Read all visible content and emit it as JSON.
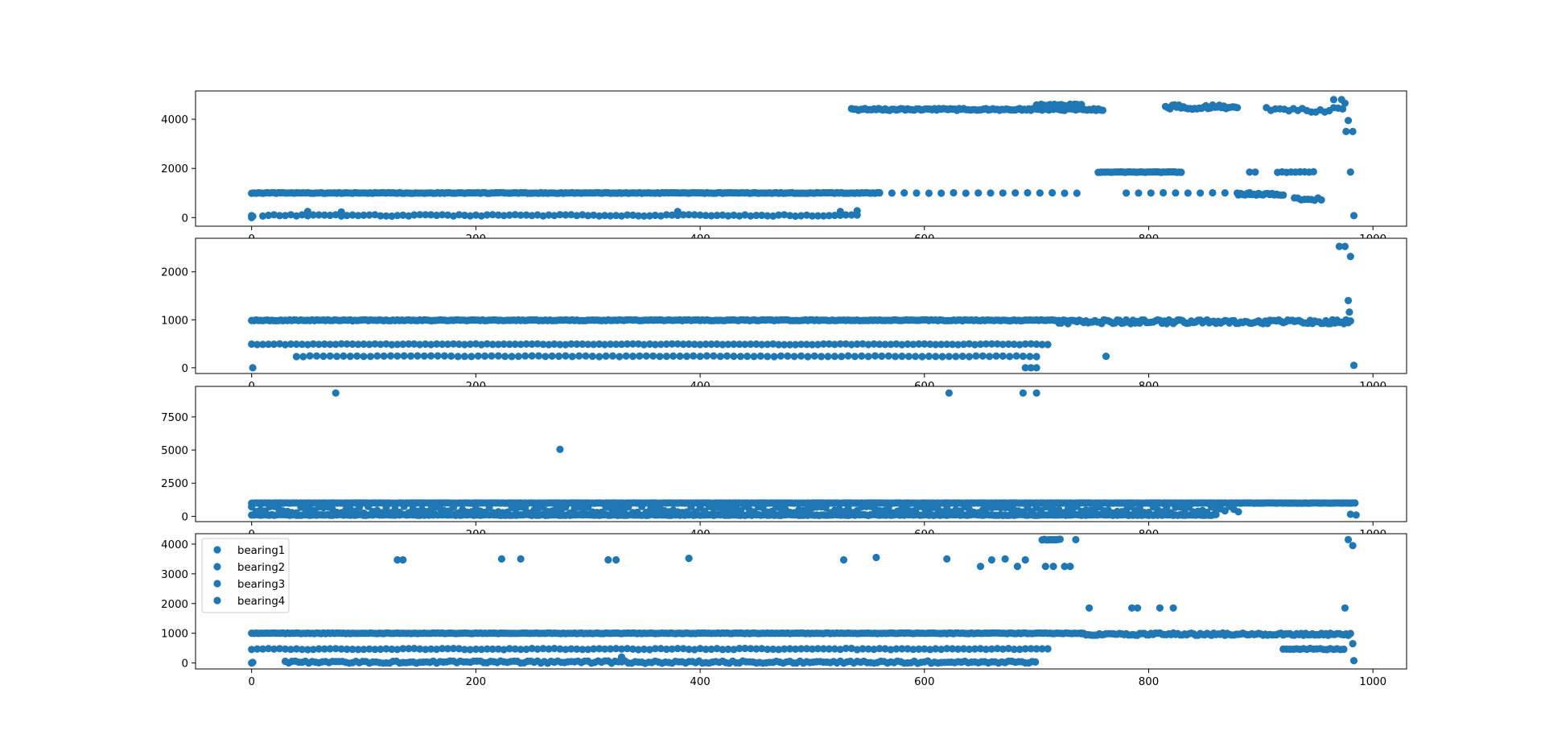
{
  "figure": {
    "marker_color": "#1f77b4",
    "legend_location": "upper left",
    "legend_in_panel": 4
  },
  "chart_data": [
    {
      "type": "scatter",
      "panel": 1,
      "xlim": [
        -50,
        1030
      ],
      "ylim": [
        -350,
        5150
      ],
      "xticks": [
        0,
        200,
        400,
        600,
        800,
        1000
      ],
      "yticks": [
        0,
        2000,
        4000
      ],
      "grid": false,
      "bands": [
        {
          "x": [
            0,
            560
          ],
          "y": 1000,
          "every": 2,
          "jitter": 15
        },
        {
          "x": [
            10,
            540
          ],
          "y": 90,
          "every": 5,
          "jitter": 30
        },
        {
          "x": [
            535,
            760
          ],
          "y": 4400,
          "every": 2,
          "jitter": 40
        },
        {
          "x": [
            700,
            740
          ],
          "y": 4580,
          "every": 2,
          "jitter": 40
        },
        {
          "x": [
            560,
            745
          ],
          "y": 1000,
          "every": 11,
          "jitter": 10
        },
        {
          "x": [
            755,
            830
          ],
          "y": 1850,
          "every": 2,
          "jitter": 10
        },
        {
          "x": [
            815,
            880
          ],
          "y": 4480,
          "every": 2,
          "jitter": 100
        },
        {
          "x": [
            780,
            900
          ],
          "y": 1000,
          "every": 11,
          "jitter": 10
        },
        {
          "x": [
            880,
            920
          ],
          "y": 950,
          "every": 2,
          "jitter": 40
        },
        {
          "x": [
            905,
            975
          ],
          "y": 4380,
          "every": 4,
          "jitter": 100
        },
        {
          "x": [
            915,
            950
          ],
          "y": 1850,
          "every": 4,
          "jitter": 15
        },
        {
          "x": [
            930,
            955
          ],
          "y": 750,
          "every": 3,
          "jitter": 60
        }
      ],
      "points": [
        [
          0,
          0
        ],
        [
          0,
          80
        ],
        [
          1,
          50
        ],
        [
          50,
          250
        ],
        [
          80,
          230
        ],
        [
          380,
          250
        ],
        [
          525,
          250
        ],
        [
          540,
          280
        ],
        [
          890,
          1850
        ],
        [
          895,
          1850
        ],
        [
          965,
          4800
        ],
        [
          972,
          4800
        ],
        [
          975,
          4650
        ],
        [
          978,
          3950
        ],
        [
          976,
          3500
        ],
        [
          982,
          3500
        ],
        [
          980,
          1850
        ],
        [
          983,
          80
        ]
      ]
    },
    {
      "type": "scatter",
      "panel": 2,
      "xlim": [
        -50,
        1030
      ],
      "ylim": [
        -120,
        2700
      ],
      "xticks": [
        0,
        200,
        400,
        600,
        800,
        1000
      ],
      "yticks": [
        0,
        1000,
        2000
      ],
      "grid": false,
      "bands": [
        {
          "x": [
            0,
            720
          ],
          "y": 990,
          "every": 2,
          "jitter": 10
        },
        {
          "x": [
            720,
            980
          ],
          "y": 960,
          "every": 2,
          "jitter": 40
        },
        {
          "x": [
            0,
            710
          ],
          "y": 490,
          "every": 5,
          "jitter": 8
        },
        {
          "x": [
            40,
            705
          ],
          "y": 240,
          "every": 6,
          "jitter": 8
        }
      ],
      "points": [
        [
          1,
          0
        ],
        [
          690,
          0
        ],
        [
          695,
          0
        ],
        [
          700,
          0
        ],
        [
          762,
          240
        ],
        [
          970,
          2530
        ],
        [
          975,
          2530
        ],
        [
          980,
          2320
        ],
        [
          978,
          1400
        ],
        [
          979,
          1160
        ],
        [
          983,
          50
        ]
      ]
    },
    {
      "type": "scatter",
      "panel": 3,
      "xlim": [
        -50,
        1030
      ],
      "ylim": [
        -400,
        9800
      ],
      "xticks": [
        0,
        200,
        400,
        600,
        800,
        1000
      ],
      "yticks": [
        0,
        2500,
        5000,
        7500
      ],
      "grid": false,
      "bands": [
        {
          "x": [
            0,
            985
          ],
          "y": 1000,
          "every": 2,
          "jitter": 10
        },
        {
          "x": [
            0,
            880
          ],
          "y": 500,
          "every": 4,
          "jitter": 250
        },
        {
          "x": [
            0,
            860
          ],
          "y": 100,
          "every": 2,
          "jitter": 40
        }
      ],
      "points": [
        [
          75,
          9300
        ],
        [
          622,
          9300
        ],
        [
          688,
          9300
        ],
        [
          700,
          9300
        ],
        [
          275,
          5050
        ],
        [
          985,
          100
        ],
        [
          980,
          150
        ]
      ]
    },
    {
      "type": "scatter",
      "panel": 4,
      "xlim": [
        -50,
        1030
      ],
      "ylim": [
        -200,
        4350
      ],
      "xticks": [
        0,
        200,
        400,
        600,
        800,
        1000
      ],
      "yticks": [
        0,
        1000,
        2000,
        3000,
        4000
      ],
      "grid": false,
      "legend": [
        "bearing1",
        "bearing2",
        "bearing3",
        "bearing4"
      ],
      "bands": [
        {
          "x": [
            0,
            740
          ],
          "y": 1000,
          "every": 2,
          "jitter": 10
        },
        {
          "x": [
            740,
            980
          ],
          "y": 970,
          "every": 2,
          "jitter": 40
        },
        {
          "x": [
            0,
            710
          ],
          "y": 470,
          "every": 5,
          "jitter": 20
        },
        {
          "x": [
            30,
            700
          ],
          "y": 30,
          "every": 3,
          "jitter": 40
        },
        {
          "x": [
            920,
            975
          ],
          "y": 470,
          "every": 3,
          "jitter": 20
        },
        {
          "x": [
            705,
            722
          ],
          "y": 4150,
          "every": 2,
          "jitter": 20
        }
      ],
      "points": [
        [
          0,
          0
        ],
        [
          1,
          20
        ],
        [
          130,
          3470
        ],
        [
          135,
          3470
        ],
        [
          223,
          3500
        ],
        [
          240,
          3500
        ],
        [
          318,
          3470
        ],
        [
          325,
          3470
        ],
        [
          390,
          3520
        ],
        [
          528,
          3470
        ],
        [
          557,
          3550
        ],
        [
          620,
          3500
        ],
        [
          650,
          3250
        ],
        [
          660,
          3470
        ],
        [
          672,
          3500
        ],
        [
          683,
          3250
        ],
        [
          690,
          3470
        ],
        [
          708,
          3250
        ],
        [
          715,
          3250
        ],
        [
          725,
          3250
        ],
        [
          730,
          3250
        ],
        [
          735,
          4150
        ],
        [
          747,
          1850
        ],
        [
          785,
          1850
        ],
        [
          790,
          1850
        ],
        [
          810,
          1850
        ],
        [
          822,
          1850
        ],
        [
          975,
          1850
        ],
        [
          978,
          4150
        ],
        [
          982,
          3950
        ],
        [
          982,
          650
        ],
        [
          983,
          80
        ],
        [
          330,
          200
        ]
      ]
    }
  ]
}
